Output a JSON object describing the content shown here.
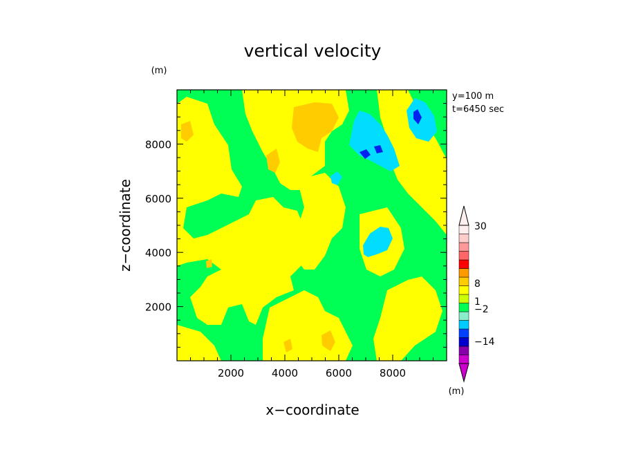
{
  "chart_data": {
    "type": "heatmap",
    "title": "vertical velocity",
    "xlabel": "x−coordinate",
    "ylabel": "z−coordinate",
    "unit_label": "(m)",
    "info_lines": [
      "y=100  m",
      "t=6450  sec"
    ],
    "xlim": [
      0,
      10000
    ],
    "ylim": [
      0,
      10000
    ],
    "xticks": [
      2000,
      4000,
      6000,
      8000
    ],
    "yticks": [
      2000,
      4000,
      6000,
      8000
    ],
    "xtick_labels": [
      "2000",
      "4000",
      "6000",
      "8000"
    ],
    "ytick_labels": [
      "2000",
      "4000",
      "6000",
      "8000"
    ],
    "colorbar": {
      "unit_label": "(m)",
      "tick_labels": [
        "30",
        "8",
        "1",
        "−2",
        "−14"
      ],
      "colors": [
        "#cc00cc",
        "#8800aa",
        "#0000cc",
        "#0040ff",
        "#00ccff",
        "#88eecc",
        "#00ff55",
        "#ccff00",
        "#ffff00",
        "#ffcc00",
        "#ff9900",
        "#ff0000",
        "#ff6666",
        "#ff9999",
        "#ffcccc",
        "#ffeeee"
      ]
    },
    "field_colors": {
      "green": "#00ff55",
      "yellow": "#ffff00",
      "orange": "#ffcc00",
      "dark_orange": "#ffaa00",
      "cyan": "#00ddff",
      "light_cyan": "#33ccff",
      "blue": "#0022ee"
    }
  }
}
